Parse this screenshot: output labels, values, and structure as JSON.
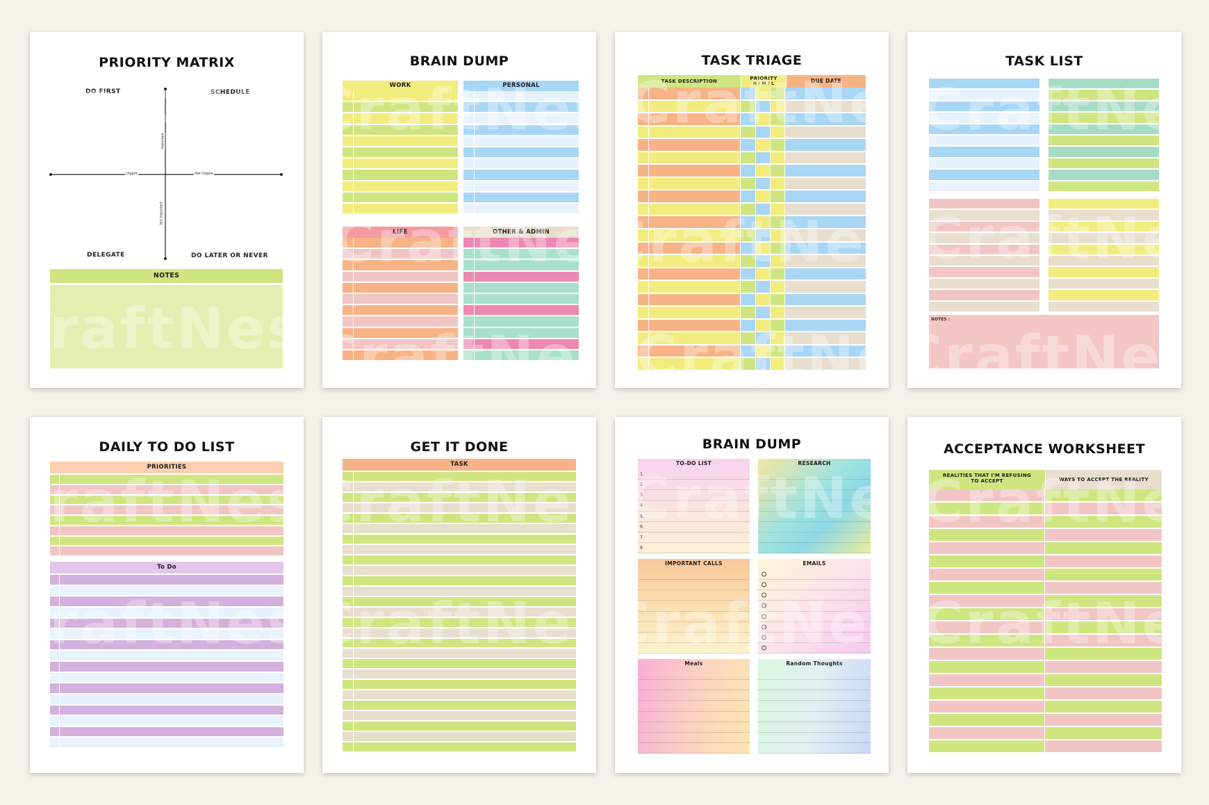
{
  "watermark": "CraftNest",
  "colors": {
    "background": "#f5f1eb",
    "yellow": "#f2ec7e",
    "lime": "#cfe57f",
    "blue": "#a8d6f5",
    "pale_blue": "#e7f2fc",
    "pink": "#f2c5c5",
    "rose": "#f49aa0",
    "orange": "#f7b386",
    "peach": "#fbd0b0",
    "magenta": "#ec88b2",
    "mint": "#a9e0c9",
    "beige": "#e8dece",
    "teal": "#a7dcc4",
    "lavender": "#d4b0dd"
  },
  "pages": {
    "priority_matrix": {
      "title": "PRIORITY MATRIX",
      "quadrants": {
        "do_first": "DO FIRST",
        "schedule": "SCHEDULE",
        "delegate": "DELEGATE",
        "do_later": "DO LATER OR NEVER"
      },
      "axes": {
        "urgent": "Urgent",
        "not_urgent": "Not Urgent",
        "important": "Important",
        "not_important": "Not Important"
      },
      "notes_label": "NOTES"
    },
    "brain_dump_1": {
      "title": "BRAIN DUMP",
      "sections": {
        "work": "WORK",
        "personal": "PERSONAL",
        "life": "LIFE",
        "other": "OTHER & ADMIN"
      }
    },
    "task_triage": {
      "title": "TASK TRIAGE",
      "columns": {
        "task": "TASK DESCRIPTION",
        "priority": "PRIORITY",
        "priority_sub": "H / M / L",
        "due": "DUE DATE"
      }
    },
    "task_list": {
      "title": "TASK LIST",
      "notes_label": "NOTES :"
    },
    "daily_todo": {
      "title": "DAILY TO DO LIST",
      "priorities_label": "PRIORITIES",
      "todo_label": "To Do"
    },
    "get_it_done": {
      "title": "GET IT DONE",
      "task_label": "TASK"
    },
    "brain_dump_2": {
      "title": "BRAIN DUMP",
      "sections": {
        "todo": "TO-DO LIST",
        "research": "RESEARCH",
        "calls": "IMPORTANT CALLS",
        "emails": "EMAILS",
        "meals": "Meals",
        "thoughts": "Random Thoughts"
      },
      "numbers": [
        "1.",
        "2.",
        "3.",
        "4.",
        "5.",
        "6.",
        "7.",
        "8."
      ]
    },
    "acceptance": {
      "title": "ACCEPTANCE WORKSHEET",
      "col1": "REALITIES THAT I'M REFUSING TO ACCEPT",
      "col2": "WAYS TO ACCEPT THE REALITY"
    }
  }
}
